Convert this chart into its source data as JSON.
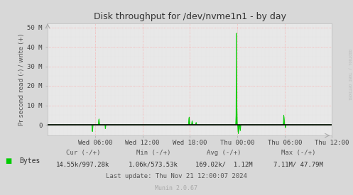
{
  "title": "Disk throughput for /dev/nvme1n1 - by day",
  "ylabel": "Pr second read (-) / write (+)",
  "bg_color": "#d8d8d8",
  "plot_bg_color": "#e8e8e8",
  "grid_color": "#ff9999",
  "grid_color_minor": "#dddddd",
  "line_color": "#00cc00",
  "zero_line_color": "#000000",
  "ylim": [
    -5500000,
    52000000
  ],
  "yticks": [
    0,
    10000000,
    20000000,
    30000000,
    40000000,
    50000000
  ],
  "ytick_labels": [
    "0",
    "10 M",
    "20 M",
    "30 M",
    "40 M",
    "50 M"
  ],
  "xtick_labels": [
    "Wed 06:00",
    "Wed 12:00",
    "Wed 18:00",
    "Thu 00:00",
    "Thu 06:00",
    "Thu 12:00"
  ],
  "watermark": "RRDTOOL / TOBI OETIKER",
  "legend_label": "Bytes",
  "footer_cur": "Cur (-/+)",
  "footer_min": "Min (-/+)",
  "footer_avg": "Avg (-/+)",
  "footer_max": "Max (-/+)",
  "footer_cur_val": "14.55k/997.28k",
  "footer_min_val": "1.06k/573.53k",
  "footer_avg_val": "169.02k/  1.12M",
  "footer_max_val": "7.11M/ 47.79M",
  "footer_lastupdate": "Last update: Thu Nov 21 12:00:07 2024",
  "footer_munin": "Munin 2.0.67",
  "n_total": 864
}
